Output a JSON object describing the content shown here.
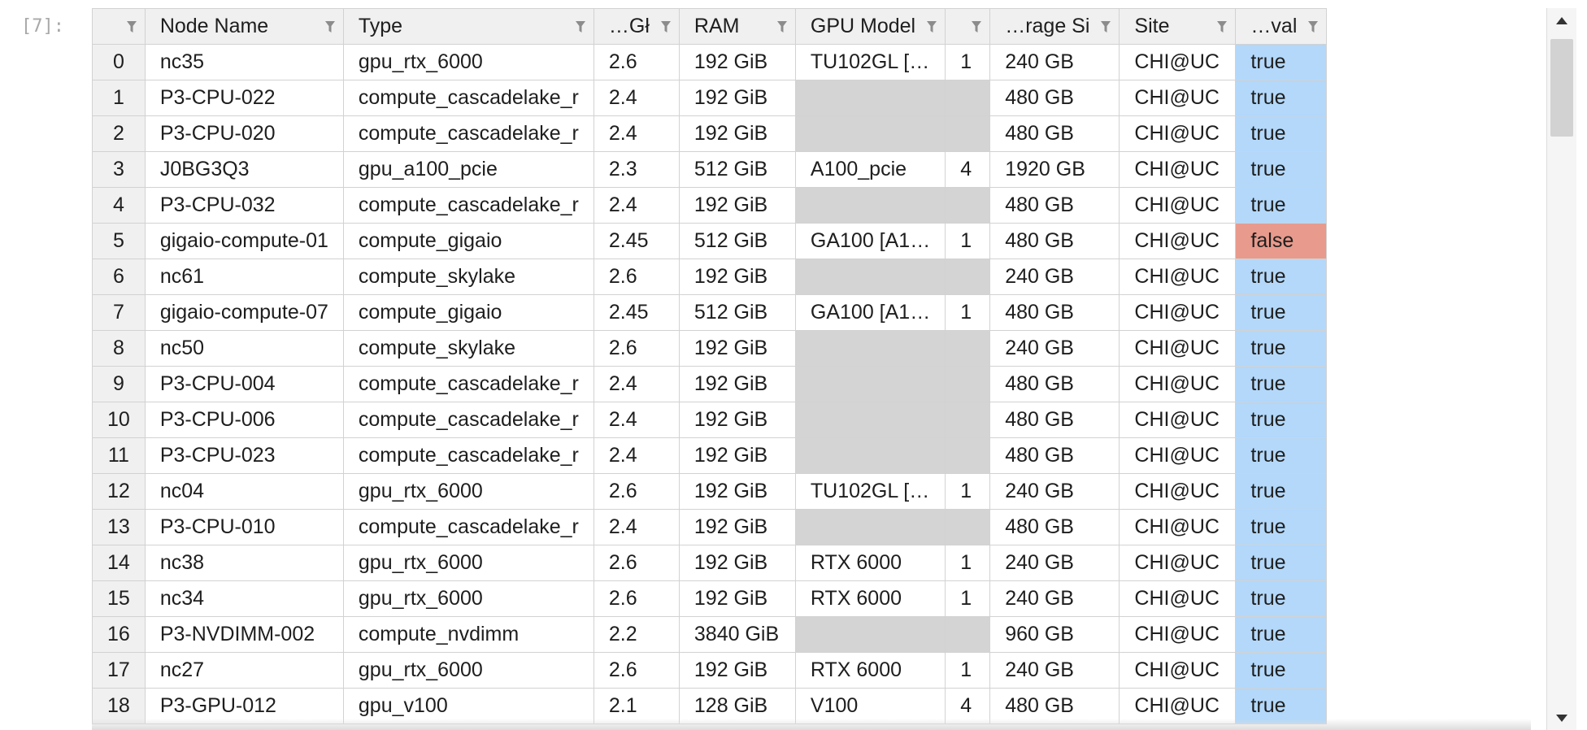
{
  "cell": {
    "prompt": "[7]:"
  },
  "grid": {
    "columns": [
      "",
      "Node Name",
      "Type",
      "…Gł",
      "RAM",
      "GPU Model",
      "",
      "…rage Si",
      "Site",
      "…val"
    ],
    "rows": [
      [
        "0",
        "nc35",
        "gpu_rtx_6000",
        "2.6",
        "192 GiB",
        "TU102GL […",
        "1",
        "240 GB",
        "CHI@UC",
        "true"
      ],
      [
        "1",
        "P3-CPU-022",
        "compute_cascadelake_r",
        "2.4",
        "192 GiB",
        "",
        "",
        "480 GB",
        "CHI@UC",
        "true"
      ],
      [
        "2",
        "P3-CPU-020",
        "compute_cascadelake_r",
        "2.4",
        "192 GiB",
        "",
        "",
        "480 GB",
        "CHI@UC",
        "true"
      ],
      [
        "3",
        "J0BG3Q3",
        "gpu_a100_pcie",
        "2.3",
        "512 GiB",
        "A100_pcie",
        "4",
        "1920 GB",
        "CHI@UC",
        "true"
      ],
      [
        "4",
        "P3-CPU-032",
        "compute_cascadelake_r",
        "2.4",
        "192 GiB",
        "",
        "",
        "480 GB",
        "CHI@UC",
        "true"
      ],
      [
        "5",
        "gigaio-compute-01",
        "compute_gigaio",
        "2.45",
        "512 GiB",
        "GA100 [A1…",
        "1",
        "480 GB",
        "CHI@UC",
        "false"
      ],
      [
        "6",
        "nc61",
        "compute_skylake",
        "2.6",
        "192 GiB",
        "",
        "",
        "240 GB",
        "CHI@UC",
        "true"
      ],
      [
        "7",
        "gigaio-compute-07",
        "compute_gigaio",
        "2.45",
        "512 GiB",
        "GA100 [A1…",
        "1",
        "480 GB",
        "CHI@UC",
        "true"
      ],
      [
        "8",
        "nc50",
        "compute_skylake",
        "2.6",
        "192 GiB",
        "",
        "",
        "240 GB",
        "CHI@UC",
        "true"
      ],
      [
        "9",
        "P3-CPU-004",
        "compute_cascadelake_r",
        "2.4",
        "192 GiB",
        "",
        "",
        "480 GB",
        "CHI@UC",
        "true"
      ],
      [
        "10",
        "P3-CPU-006",
        "compute_cascadelake_r",
        "2.4",
        "192 GiB",
        "",
        "",
        "480 GB",
        "CHI@UC",
        "true"
      ],
      [
        "11",
        "P3-CPU-023",
        "compute_cascadelake_r",
        "2.4",
        "192 GiB",
        "",
        "",
        "480 GB",
        "CHI@UC",
        "true"
      ],
      [
        "12",
        "nc04",
        "gpu_rtx_6000",
        "2.6",
        "192 GiB",
        "TU102GL […",
        "1",
        "240 GB",
        "CHI@UC",
        "true"
      ],
      [
        "13",
        "P3-CPU-010",
        "compute_cascadelake_r",
        "2.4",
        "192 GiB",
        "",
        "",
        "480 GB",
        "CHI@UC",
        "true"
      ],
      [
        "14",
        "nc38",
        "gpu_rtx_6000",
        "2.6",
        "192 GiB",
        "RTX 6000",
        "1",
        "240 GB",
        "CHI@UC",
        "true"
      ],
      [
        "15",
        "nc34",
        "gpu_rtx_6000",
        "2.6",
        "192 GiB",
        "RTX 6000",
        "1",
        "240 GB",
        "CHI@UC",
        "true"
      ],
      [
        "16",
        "P3-NVDIMM-002",
        "compute_nvdimm",
        "2.2",
        "3840 GiB",
        "",
        "",
        "960 GB",
        "CHI@UC",
        "true"
      ],
      [
        "17",
        "nc27",
        "gpu_rtx_6000",
        "2.6",
        "192 GiB",
        "RTX 6000",
        "1",
        "240 GB",
        "CHI@UC",
        "true"
      ],
      [
        "18",
        "P3-GPU-012",
        "gpu_v100",
        "2.1",
        "128 GiB",
        "V100",
        "4",
        "480 GB",
        "CHI@UC",
        "true"
      ]
    ]
  },
  "colors": {
    "header_bg": "#f0f0f0",
    "empty_cell": "#d4d4d4",
    "bool_true": "#b3d8fa",
    "bool_false": "#e89a8c"
  },
  "icons": {
    "header_filter": "filter-icon",
    "scroll_up": "arrow-up-icon",
    "scroll_down": "arrow-down-icon"
  }
}
